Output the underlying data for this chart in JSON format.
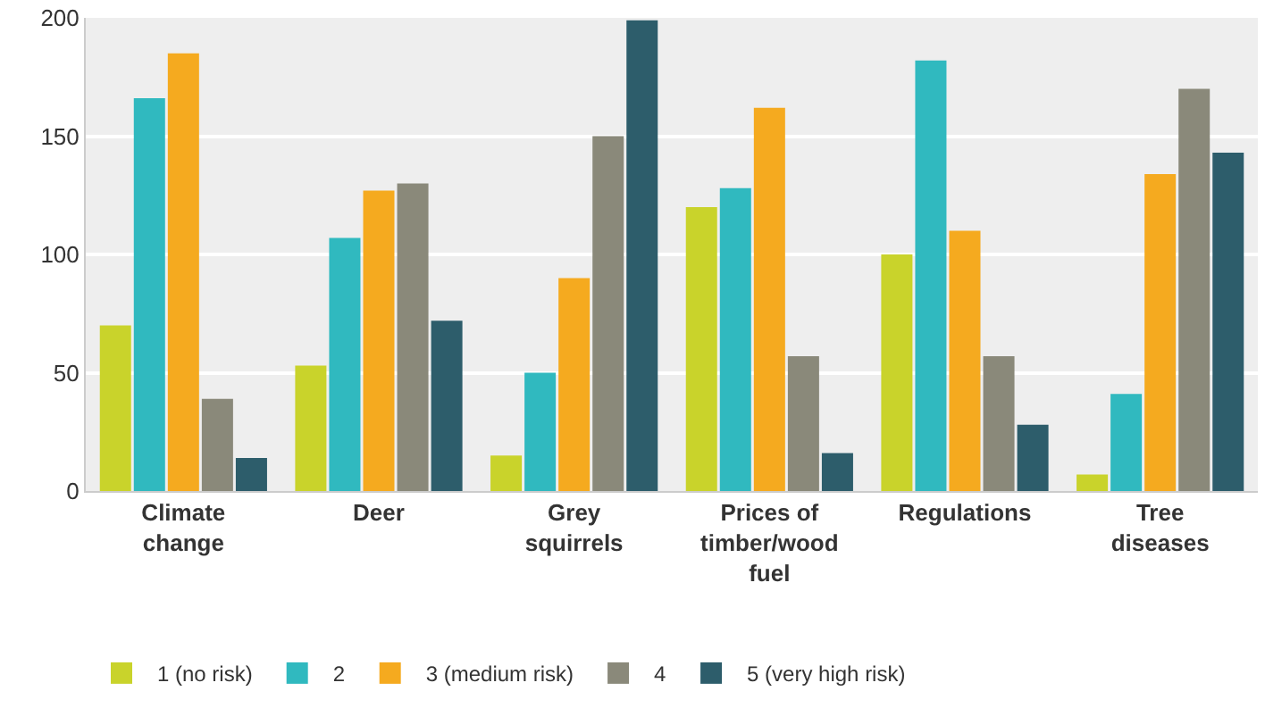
{
  "chart_data": {
    "type": "bar",
    "categories": [
      "Climate change",
      "Deer",
      "Grey squirrels",
      "Prices of timber/wood fuel",
      "Regulations",
      "Tree diseases"
    ],
    "series": [
      {
        "name": "1 (no risk)",
        "color": "#c9d32b",
        "values": [
          70,
          53,
          15,
          120,
          100,
          7
        ]
      },
      {
        "name": "2",
        "color": "#30b9bf",
        "values": [
          166,
          107,
          50,
          128,
          182,
          41
        ]
      },
      {
        "name": "3 (medium risk)",
        "color": "#f5aa1f",
        "values": [
          185,
          127,
          90,
          162,
          110,
          134
        ]
      },
      {
        "name": "4",
        "color": "#8a897a",
        "values": [
          39,
          130,
          150,
          57,
          57,
          170
        ]
      },
      {
        "name": "5 (very high risk)",
        "color": "#2d5d6b",
        "values": [
          14,
          72,
          199,
          16,
          28,
          143
        ]
      }
    ],
    "ylim": [
      0,
      200
    ],
    "yticks": [
      0,
      50,
      100,
      150,
      200
    ],
    "grid": "y",
    "legend": "bottom"
  }
}
